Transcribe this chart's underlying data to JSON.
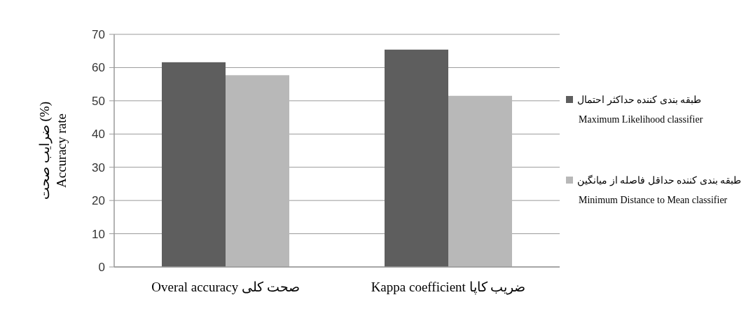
{
  "chart_data": {
    "type": "bar",
    "ylabel": "ضرایب صحت (%)\nAccuracy  rate",
    "categories": [
      "Overal accuracy  صحت کلی",
      "Kappa coefficient  ضریب کاپا"
    ],
    "series": [
      {
        "name": "طبقه بندی کننده حداکثر احتمال\nMaximum Likelihood classifier",
        "color": "#5e5e5e",
        "values": [
          61.6,
          65.4
        ]
      },
      {
        "name": "طبقه بندی کننده حداقل فاصله از میانگین\nMinimum Distance to Mean classifier",
        "color": "#b8b8b8",
        "values": [
          57.7,
          51.5
        ]
      }
    ],
    "ylim": [
      0,
      70
    ],
    "yticks": [
      0,
      10,
      20,
      30,
      40,
      50,
      60,
      70
    ],
    "grid": "y",
    "legend": "right"
  }
}
